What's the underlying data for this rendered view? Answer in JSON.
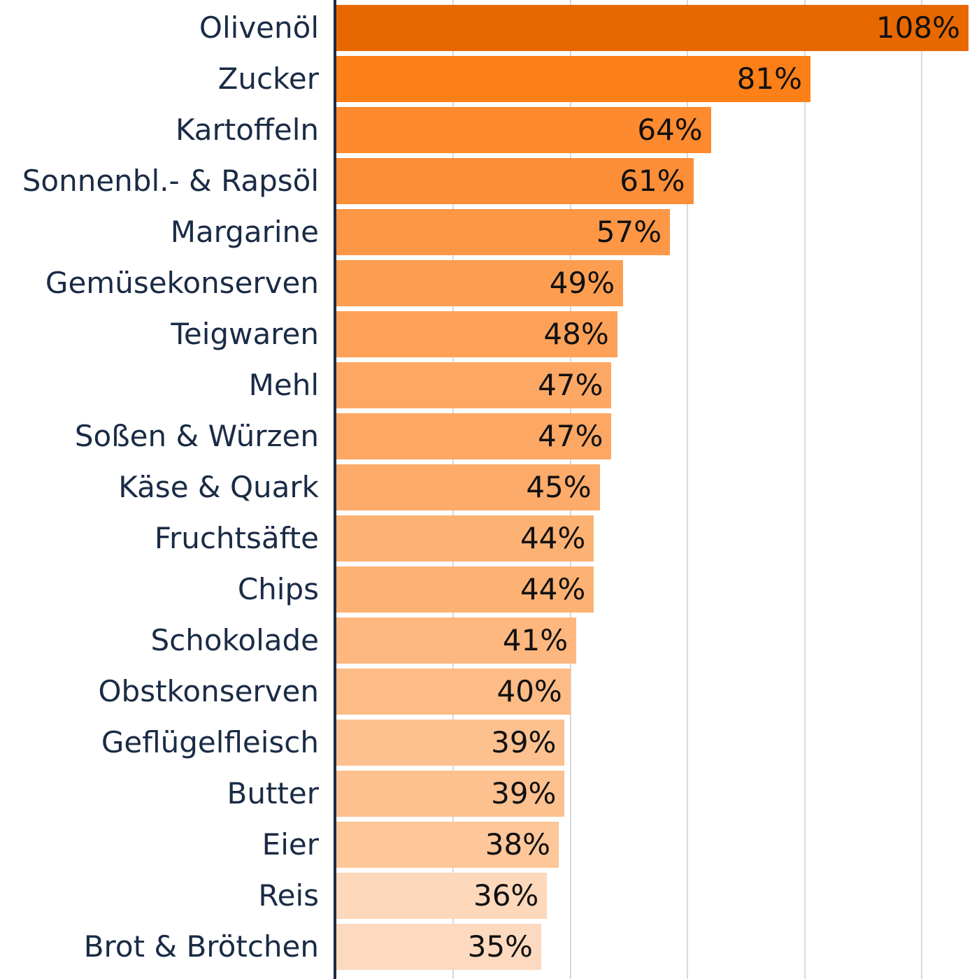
{
  "chart_data": {
    "type": "bar",
    "orientation": "horizontal",
    "title": "",
    "xlabel": "",
    "ylabel": "",
    "xlim": [
      0,
      108
    ],
    "grid": true,
    "grid_step": 20,
    "value_suffix": "%",
    "categories": [
      "Olivenöl",
      "Zucker",
      "Kartoffeln",
      "Sonnenbl.- & Rapsöl",
      "Margarine",
      "Gemüsekonserven",
      "Teigwaren",
      "Mehl",
      "Soßen & Würzen",
      "Käse & Quark",
      "Fruchtsäfte",
      "Chips",
      "Schokolade",
      "Obstkonserven",
      "Geflügelfleisch",
      "Butter",
      "Eier",
      "Reis",
      "Brot & Brötchen"
    ],
    "values": [
      108,
      81,
      64,
      61,
      57,
      49,
      48,
      47,
      47,
      45,
      44,
      44,
      41,
      40,
      39,
      39,
      38,
      36,
      35
    ],
    "value_labels": [
      "108%",
      "81%",
      "64%",
      "61%",
      "57%",
      "49%",
      "48%",
      "47%",
      "47%",
      "45%",
      "44%",
      "44%",
      "41%",
      "40%",
      "39%",
      "39%",
      "38%",
      "36%",
      "35%"
    ],
    "colors": [
      "#e86800",
      "#fd7f17",
      "#fd8a2e",
      "#fd8e38",
      "#fd9746",
      "#fd9d50",
      "#fda159",
      "#fda764",
      "#fda764",
      "#fdab6b",
      "#fdb274",
      "#fdb274",
      "#fdb77f",
      "#fdbb86",
      "#fdc190",
      "#fdc190",
      "#fdc799",
      "#fdd8bb",
      "#fcd9bf"
    ]
  }
}
